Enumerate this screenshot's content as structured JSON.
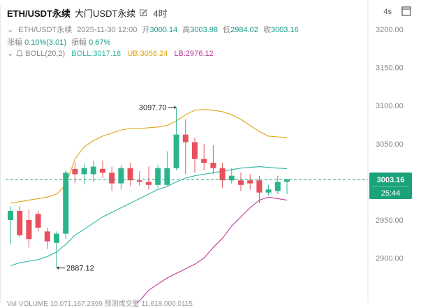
{
  "header": {
    "symbol": "ETH/USDT永续",
    "name": "大门USDT永续",
    "timeframe": "4时",
    "refresh": "4s"
  },
  "ohlc": {
    "symbol": "ETH/USDT永续",
    "datetime": "2025-11-30 12:00",
    "open_label": "开",
    "open": "3000.14",
    "high_label": "高",
    "high": "3003.98",
    "low_label": "低",
    "low": "2984.02",
    "close_label": "收",
    "close": "3003.16",
    "change_label": "涨幅",
    "change": "0.10%(3.01)",
    "amp_label": "振幅",
    "amp": "0.67%"
  },
  "boll": {
    "label": "BOLL(20,2)",
    "mid": "BOLL:3017.18",
    "ub": "UB:3058.24",
    "lb": "LB:2976.12"
  },
  "price_tag": {
    "price": "3003.16",
    "countdown": "25:44"
  },
  "annotations": {
    "high": "3097.70",
    "low": "2887.12"
  },
  "volume_row": "Vol VOLUME 10,071,167.2399  预测成交量 11,618,000.0115",
  "colors": {
    "up": "#2bb48b",
    "down": "#e8505b",
    "mid": "#2bb7a3",
    "upper": "#e0a316",
    "lower": "#c0399a",
    "price_tag": "#1aa37a"
  },
  "chart_data": {
    "type": "candlestick",
    "y_axis_ticks": [
      3200,
      3150,
      3100,
      3050,
      2950,
      2900
    ],
    "y_axis_labels": [
      "3200.00",
      "3150.00",
      "3100.00",
      "3050.00",
      "2950.00",
      "2900.00"
    ],
    "ylim": [
      2862,
      3220
    ],
    "grid": false,
    "candles": [
      {
        "o": 2950,
        "h": 2968,
        "l": 2918,
        "c": 2962
      },
      {
        "o": 2962,
        "h": 2968,
        "l": 2928,
        "c": 2930
      },
      {
        "o": 2950,
        "h": 2964,
        "l": 2914,
        "c": 2925
      },
      {
        "o": 2958,
        "h": 2962,
        "l": 2935,
        "c": 2940
      },
      {
        "o": 2935,
        "h": 2940,
        "l": 2912,
        "c": 2922
      },
      {
        "o": 2920,
        "h": 2935,
        "l": 2887.12,
        "c": 2932
      },
      {
        "o": 2932,
        "h": 3015,
        "l": 2925,
        "c": 3012
      },
      {
        "o": 3017,
        "h": 3025,
        "l": 2998,
        "c": 3010
      },
      {
        "o": 3010,
        "h": 3024,
        "l": 2997,
        "c": 3018
      },
      {
        "o": 3010,
        "h": 3028,
        "l": 3000,
        "c": 3020
      },
      {
        "o": 3017,
        "h": 3028,
        "l": 3005,
        "c": 3012
      },
      {
        "o": 3012,
        "h": 3020,
        "l": 2988,
        "c": 2998
      },
      {
        "o": 2998,
        "h": 3022,
        "l": 2990,
        "c": 3018
      },
      {
        "o": 3018,
        "h": 3025,
        "l": 2995,
        "c": 3002
      },
      {
        "o": 3002,
        "h": 3014,
        "l": 2995,
        "c": 3000
      },
      {
        "o": 3000,
        "h": 3020,
        "l": 2990,
        "c": 2996
      },
      {
        "o": 2996,
        "h": 3022,
        "l": 2992,
        "c": 3018
      },
      {
        "o": 2996,
        "h": 3040,
        "l": 2995,
        "c": 3018
      },
      {
        "o": 3018,
        "h": 3097.7,
        "l": 3015,
        "c": 3062
      },
      {
        "o": 3062,
        "h": 3082,
        "l": 3010,
        "c": 3052
      },
      {
        "o": 3052,
        "h": 3058,
        "l": 3012,
        "c": 3030
      },
      {
        "o": 3030,
        "h": 3050,
        "l": 3015,
        "c": 3025
      },
      {
        "o": 3025,
        "h": 3048,
        "l": 3010,
        "c": 3018
      },
      {
        "o": 3018,
        "h": 3025,
        "l": 2992,
        "c": 3002
      },
      {
        "o": 3002,
        "h": 3018,
        "l": 2998,
        "c": 3008
      },
      {
        "o": 3002,
        "h": 3012,
        "l": 2988,
        "c": 2996
      },
      {
        "o": 3002,
        "h": 3010,
        "l": 2990,
        "c": 2998
      },
      {
        "o": 3002,
        "h": 3008,
        "l": 2972,
        "c": 2986
      },
      {
        "o": 2986,
        "h": 2996,
        "l": 2982,
        "c": 2990
      },
      {
        "o": 2988,
        "h": 3008,
        "l": 2984,
        "c": 3000
      },
      {
        "o": 3000.14,
        "h": 3003.98,
        "l": 2984.02,
        "c": 3003.16
      }
    ],
    "upper_band": [
      2972,
      2974,
      2976,
      2978,
      2980,
      2984,
      2996,
      3030,
      3046,
      3054,
      3060,
      3064,
      3068,
      3070,
      3070,
      3071,
      3072,
      3074,
      3080,
      3088,
      3094,
      3095,
      3094,
      3092,
      3088,
      3082,
      3074,
      3066,
      3060,
      3059,
      3058.24
    ],
    "middle_band": [
      2890,
      2894,
      2896,
      2898,
      2902,
      2908,
      2918,
      2930,
      2938,
      2946,
      2954,
      2960,
      2966,
      2972,
      2978,
      2984,
      2990,
      2994,
      3000,
      3005,
      3008,
      3010,
      3012,
      3014,
      3016,
      3018,
      3019,
      3020,
      3019,
      3018,
      3017.18
    ],
    "lower_band": [
      null,
      null,
      null,
      null,
      null,
      null,
      null,
      null,
      null,
      null,
      null,
      null,
      null,
      2832,
      2844,
      2858,
      2866,
      2874,
      2880,
      2886,
      2892,
      2900,
      2914,
      2926,
      2942,
      2954,
      2966,
      2976,
      2980,
      2978,
      2976.12
    ],
    "current_price": 3003.16
  }
}
